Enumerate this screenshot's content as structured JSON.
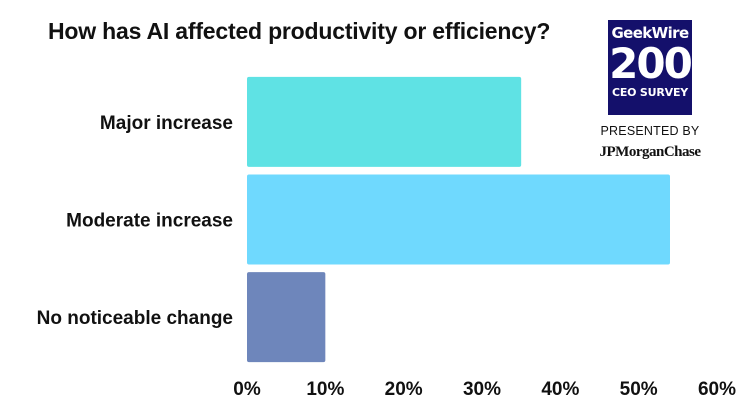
{
  "title": "How has AI affected productivity or efficiency?",
  "branding": {
    "logo_top": "GeekWire",
    "logo_number": "200",
    "logo_bottom": "CEO SURVEY",
    "presented_by": "PRESENTED BY",
    "sponsor": "JPMorganChase",
    "logo_color": "#14106b"
  },
  "chart_data": {
    "type": "bar",
    "orientation": "horizontal",
    "title": "How has AI affected productivity or efficiency?",
    "categories": [
      "Major increase",
      "Moderate increase",
      "No noticeable change"
    ],
    "values": [
      35,
      54,
      10
    ],
    "colors": [
      "#5fe2e4",
      "#6fd9fe",
      "#6e86bb"
    ],
    "xlim": [
      0,
      60
    ],
    "xticks": [
      "0%",
      "10%",
      "20%",
      "30%",
      "40%",
      "50%",
      "60%"
    ],
    "grid": false,
    "legend": false
  }
}
